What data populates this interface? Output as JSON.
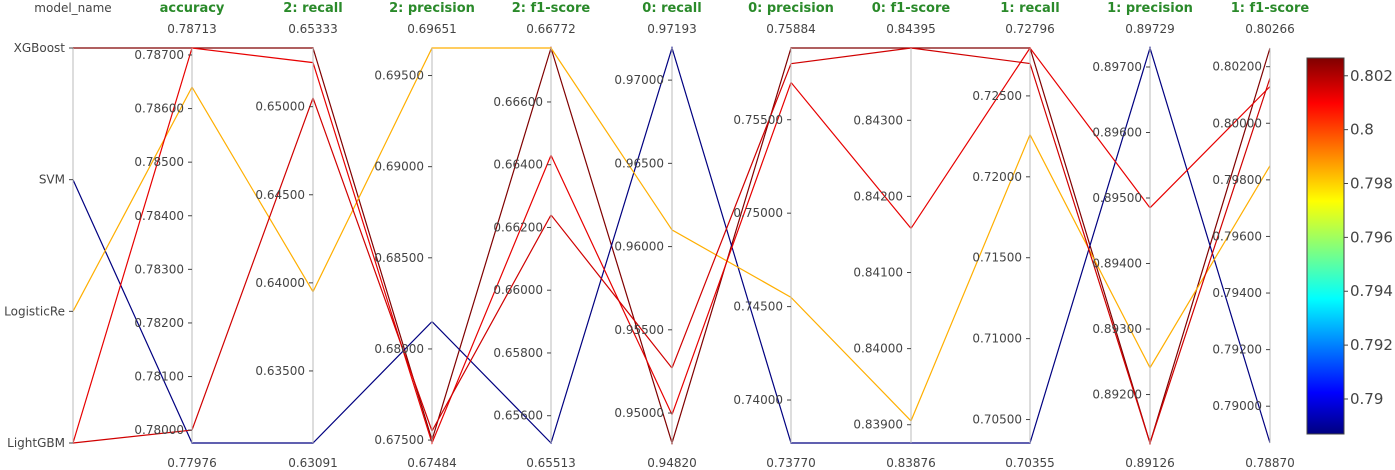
{
  "chart_data": {
    "type": "parallel_coordinates",
    "colorscale": {
      "stops": [
        "#000080",
        "#0000ff",
        "#00ffff",
        "#ffff00",
        "#ff0000",
        "#800000"
      ],
      "min": 0.7887,
      "max": 0.80266,
      "ticks": [
        {
          "value": 0.79,
          "label": "0.79"
        },
        {
          "value": 0.792,
          "label": "0.792"
        },
        {
          "value": 0.794,
          "label": "0.794"
        },
        {
          "value": 0.796,
          "label": "0.796"
        },
        {
          "value": 0.798,
          "label": "0.798"
        },
        {
          "value": 0.8,
          "label": "0.8"
        },
        {
          "value": 0.802,
          "label": "0.802"
        }
      ]
    },
    "category_axis": {
      "title": "model_name",
      "categories": [
        "XGBoost",
        "SVM",
        "LogisticRe",
        "LightGBM"
      ]
    },
    "axes": [
      {
        "title": "accuracy",
        "min": 0.77976,
        "max": 0.78713,
        "min_label": "0.77976",
        "max_label": "0.78713",
        "ticks": [
          "0.78000",
          "0.78100",
          "0.78200",
          "0.78300",
          "0.78400",
          "0.78500",
          "0.78600",
          "0.78700"
        ]
      },
      {
        "title": "2: recall",
        "min": 0.63091,
        "max": 0.65333,
        "min_label": "0.63091",
        "max_label": "0.65333",
        "ticks": [
          "0.63500",
          "0.64000",
          "0.64500",
          "0.65000"
        ]
      },
      {
        "title": "2: precision",
        "min": 0.67484,
        "max": 0.69651,
        "min_label": "0.67484",
        "max_label": "0.69651",
        "ticks": [
          "0.67500",
          "0.68000",
          "0.68500",
          "0.69000",
          "0.69500"
        ]
      },
      {
        "title": "2: f1-score",
        "min": 0.65513,
        "max": 0.66772,
        "min_label": "0.65513",
        "max_label": "0.66772",
        "ticks": [
          "0.65600",
          "0.65800",
          "0.66000",
          "0.66200",
          "0.66400",
          "0.66600"
        ]
      },
      {
        "title": "0: recall",
        "min": 0.9482,
        "max": 0.97193,
        "min_label": "0.94820",
        "max_label": "0.97193",
        "ticks": [
          "0.95000",
          "0.95500",
          "0.96000",
          "0.96500",
          "0.97000"
        ]
      },
      {
        "title": "0: precision",
        "min": 0.7377,
        "max": 0.75884,
        "min_label": "0.73770",
        "max_label": "0.75884",
        "ticks": [
          "0.74000",
          "0.74500",
          "0.75000",
          "0.75500"
        ]
      },
      {
        "title": "0: f1-score",
        "min": 0.83876,
        "max": 0.84395,
        "min_label": "0.83876",
        "max_label": "0.84395",
        "ticks": [
          "0.83900",
          "0.84000",
          "0.84100",
          "0.84200",
          "0.84300"
        ]
      },
      {
        "title": "1: recall",
        "min": 0.70355,
        "max": 0.72796,
        "min_label": "0.70355",
        "max_label": "0.72796",
        "ticks": [
          "0.70500",
          "0.71000",
          "0.71500",
          "0.72000",
          "0.72500"
        ]
      },
      {
        "title": "1: precision",
        "min": 0.89126,
        "max": 0.89729,
        "min_label": "0.89126",
        "max_label": "0.89729",
        "ticks": [
          "0.89200",
          "0.89300",
          "0.89400",
          "0.89500",
          "0.89600",
          "0.89700"
        ]
      },
      {
        "title": "1: f1-score",
        "min": 0.7887,
        "max": 0.80266,
        "min_label": "0.78870",
        "max_label": "0.80266",
        "ticks": [
          "0.79000",
          "0.79200",
          "0.79400",
          "0.79600",
          "0.79800",
          "0.80000",
          "0.80200"
        ]
      }
    ],
    "series": [
      {
        "model": "XGBoost",
        "color_value": 0.80266,
        "values": [
          0.78713,
          0.65333,
          0.675,
          0.66772,
          0.9482,
          0.75884,
          0.84395,
          0.72796,
          0.89126,
          0.80266
        ]
      },
      {
        "model": "SVM",
        "color_value": 0.7887,
        "values": [
          0.77976,
          0.63091,
          0.6815,
          0.65513,
          0.97193,
          0.7377,
          0.83876,
          0.70355,
          0.89729,
          0.7887
        ]
      },
      {
        "model": "LogisticRe",
        "color_value": 0.7985,
        "values": [
          0.7864,
          0.6395,
          0.69651,
          0.66772,
          0.961,
          0.7455,
          0.83905,
          0.7226,
          0.89241,
          0.7985
        ]
      },
      {
        "model": "LightGBM",
        "color_value": 0.8013,
        "values": [
          0.78713,
          0.6525,
          0.67484,
          0.6643,
          0.9499,
          0.757,
          0.84158,
          0.72796,
          0.89485,
          0.8013
        ]
      },
      {
        "model": "LightGBM",
        "color_value": 0.8016,
        "values": [
          0.78,
          0.6505,
          0.6755,
          0.6624,
          0.9527,
          0.758,
          0.84395,
          0.727,
          0.89126,
          0.8016
        ]
      }
    ]
  }
}
